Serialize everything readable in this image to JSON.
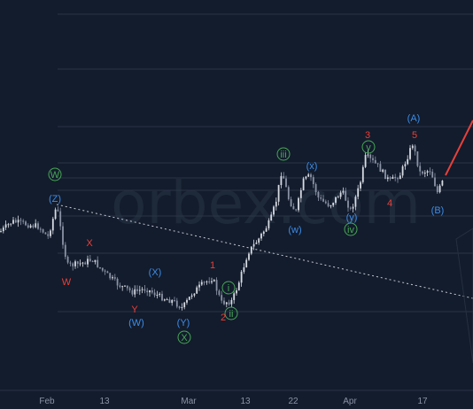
{
  "watermark": "orbex.com",
  "colors": {
    "background": "#131c2c",
    "up": "#d7dbe3",
    "down": "#8a93a6",
    "blue": "#3d8ce8",
    "red": "#e8403a",
    "green": "#46a857",
    "trendline": "#c4c9d3"
  },
  "chart_data": {
    "type": "candlestick",
    "x_ticks": [
      "Feb",
      "13",
      "Mar",
      "13",
      "22",
      "Apr",
      "17"
    ],
    "grid": true,
    "trendline": "dotted line from (Z) down to the right edge",
    "wave_labels": [
      {
        "text": "W",
        "color": "green",
        "circled": true
      },
      {
        "text": "(Z)",
        "color": "blue",
        "circled": false
      },
      {
        "text": "X",
        "color": "red",
        "circled": false
      },
      {
        "text": "W",
        "color": "red",
        "circled": false
      },
      {
        "text": "(X)",
        "color": "blue",
        "circled": false
      },
      {
        "text": "Y",
        "color": "red",
        "circled": false
      },
      {
        "text": "(W)",
        "color": "blue",
        "circled": false
      },
      {
        "text": "(Y)",
        "color": "blue",
        "circled": false
      },
      {
        "text": "X",
        "color": "green",
        "circled": true
      },
      {
        "text": "1",
        "color": "red",
        "circled": false
      },
      {
        "text": "i",
        "color": "green",
        "circled": true
      },
      {
        "text": "2",
        "color": "red",
        "circled": false
      },
      {
        "text": "ii",
        "color": "green",
        "circled": true
      },
      {
        "text": "iii",
        "color": "green",
        "circled": true
      },
      {
        "text": "(w)",
        "color": "blue",
        "circled": false
      },
      {
        "text": "(x)",
        "color": "blue",
        "circled": false
      },
      {
        "text": "3",
        "color": "red",
        "circled": false
      },
      {
        "text": "v",
        "color": "green",
        "circled": true
      },
      {
        "text": "(y)",
        "color": "blue",
        "circled": false
      },
      {
        "text": "iv",
        "color": "green",
        "circled": true
      },
      {
        "text": "4",
        "color": "red",
        "circled": false
      },
      {
        "text": "(A)",
        "color": "blue",
        "circled": false
      },
      {
        "text": "5",
        "color": "red",
        "circled": false
      },
      {
        "text": "(B)",
        "color": "blue",
        "circled": false
      }
    ]
  }
}
